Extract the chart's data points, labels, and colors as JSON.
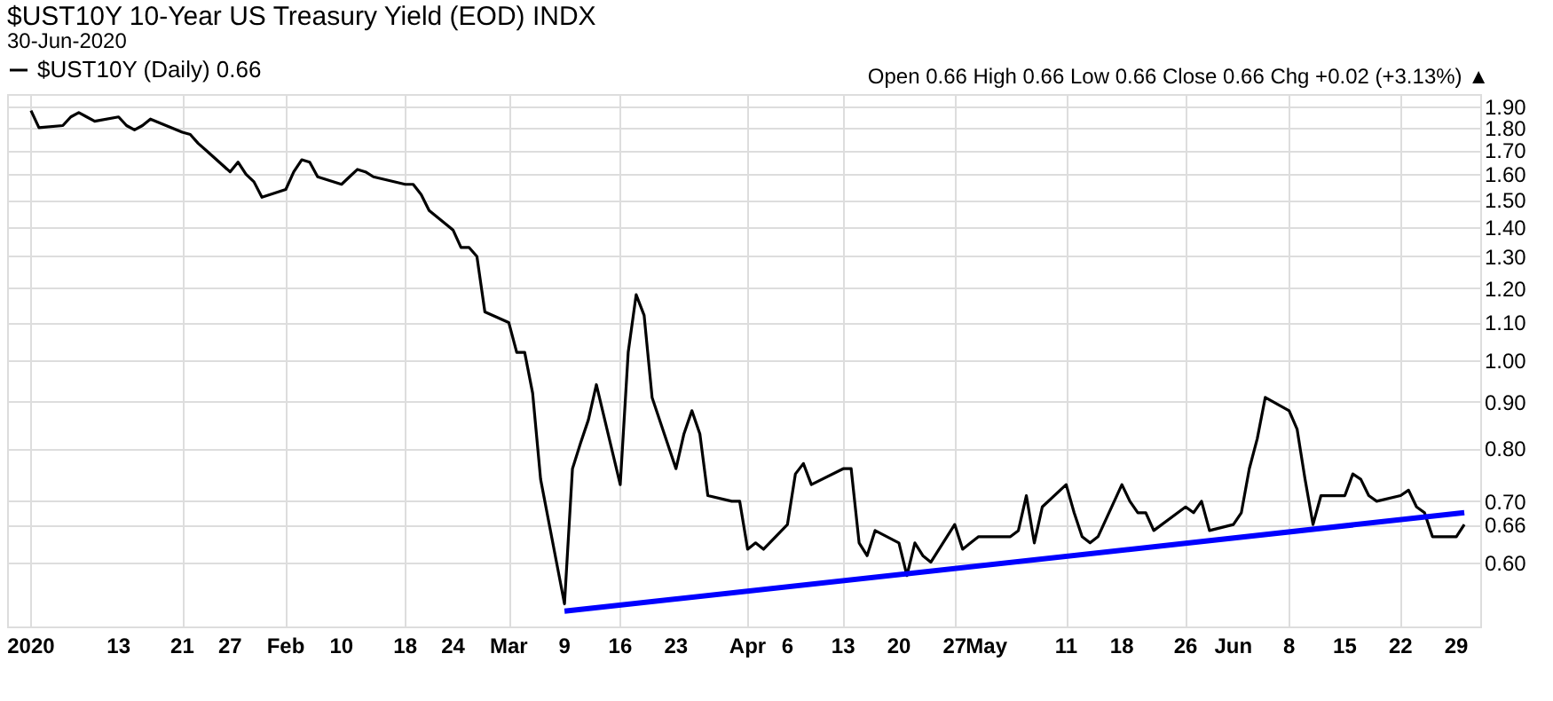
{
  "chart_data": {
    "type": "line",
    "title": "$UST10Y 10-Year US Treasury Yield (EOD) INDX",
    "subtitle": "30-Jun-2020",
    "annotations": [
      "Open 0.66  High 0.66  Low 0.66  Close 0.66  Chg +0.02 (+3.13%) ▲"
    ],
    "x": [
      "2020-01-02",
      "2020-01-03",
      "2020-01-06",
      "2020-01-07",
      "2020-01-08",
      "2020-01-09",
      "2020-01-10",
      "2020-01-13",
      "2020-01-14",
      "2020-01-15",
      "2020-01-16",
      "2020-01-17",
      "2020-01-21",
      "2020-01-22",
      "2020-01-23",
      "2020-01-24",
      "2020-01-27",
      "2020-01-28",
      "2020-01-29",
      "2020-01-30",
      "2020-01-31",
      "2020-02-03",
      "2020-02-04",
      "2020-02-05",
      "2020-02-06",
      "2020-02-07",
      "2020-02-10",
      "2020-02-11",
      "2020-02-12",
      "2020-02-13",
      "2020-02-14",
      "2020-02-18",
      "2020-02-19",
      "2020-02-20",
      "2020-02-21",
      "2020-02-24",
      "2020-02-25",
      "2020-02-26",
      "2020-02-27",
      "2020-02-28",
      "2020-03-02",
      "2020-03-03",
      "2020-03-04",
      "2020-03-05",
      "2020-03-06",
      "2020-03-09",
      "2020-03-10",
      "2020-03-11",
      "2020-03-12",
      "2020-03-13",
      "2020-03-16",
      "2020-03-17",
      "2020-03-18",
      "2020-03-19",
      "2020-03-20",
      "2020-03-23",
      "2020-03-24",
      "2020-03-25",
      "2020-03-26",
      "2020-03-27",
      "2020-03-30",
      "2020-03-31",
      "2020-04-01",
      "2020-04-02",
      "2020-04-03",
      "2020-04-06",
      "2020-04-07",
      "2020-04-08",
      "2020-04-09",
      "2020-04-13",
      "2020-04-14",
      "2020-04-15",
      "2020-04-16",
      "2020-04-17",
      "2020-04-20",
      "2020-04-21",
      "2020-04-22",
      "2020-04-23",
      "2020-04-24",
      "2020-04-27",
      "2020-04-28",
      "2020-04-29",
      "2020-04-30",
      "2020-05-01",
      "2020-05-04",
      "2020-05-05",
      "2020-05-06",
      "2020-05-07",
      "2020-05-08",
      "2020-05-11",
      "2020-05-12",
      "2020-05-13",
      "2020-05-14",
      "2020-05-15",
      "2020-05-18",
      "2020-05-19",
      "2020-05-20",
      "2020-05-21",
      "2020-05-22",
      "2020-05-26",
      "2020-05-27",
      "2020-05-28",
      "2020-05-29",
      "2020-06-01",
      "2020-06-02",
      "2020-06-03",
      "2020-06-04",
      "2020-06-05",
      "2020-06-08",
      "2020-06-09",
      "2020-06-10",
      "2020-06-11",
      "2020-06-12",
      "2020-06-15",
      "2020-06-16",
      "2020-06-17",
      "2020-06-18",
      "2020-06-19",
      "2020-06-22",
      "2020-06-23",
      "2020-06-24",
      "2020-06-25",
      "2020-06-26",
      "2020-06-29",
      "2020-06-30"
    ],
    "series": [
      {
        "name": "$UST10Y (Daily) 0.66",
        "color": "#000000",
        "values": [
          1.88,
          1.8,
          1.81,
          1.85,
          1.87,
          1.85,
          1.83,
          1.85,
          1.81,
          1.79,
          1.81,
          1.84,
          1.78,
          1.77,
          1.73,
          1.7,
          1.61,
          1.65,
          1.6,
          1.57,
          1.51,
          1.54,
          1.61,
          1.66,
          1.65,
          1.59,
          1.56,
          1.59,
          1.62,
          1.61,
          1.59,
          1.56,
          1.56,
          1.52,
          1.46,
          1.39,
          1.33,
          1.33,
          1.3,
          1.13,
          1.1,
          1.02,
          1.02,
          0.92,
          0.74,
          0.54,
          0.76,
          0.81,
          0.86,
          0.94,
          0.73,
          1.02,
          1.18,
          1.12,
          0.91,
          0.76,
          0.83,
          0.88,
          0.83,
          0.71,
          0.7,
          0.7,
          0.62,
          0.63,
          0.62,
          0.66,
          0.75,
          0.77,
          0.73,
          0.76,
          0.76,
          0.63,
          0.61,
          0.65,
          0.63,
          0.58,
          0.63,
          0.61,
          0.6,
          0.66,
          0.62,
          0.63,
          0.64,
          0.64,
          0.64,
          0.65,
          0.71,
          0.63,
          0.69,
          0.73,
          0.68,
          0.64,
          0.63,
          0.64,
          0.73,
          0.7,
          0.68,
          0.68,
          0.65,
          0.69,
          0.68,
          0.7,
          0.65,
          0.66,
          0.68,
          0.76,
          0.82,
          0.91,
          0.88,
          0.84,
          0.74,
          0.66,
          0.71,
          0.71,
          0.75,
          0.74,
          0.71,
          0.7,
          0.71,
          0.72,
          0.69,
          0.68,
          0.64,
          0.64,
          0.66
        ]
      },
      {
        "type": "line",
        "color": "#0000ff",
        "x": [
          "2020-03-09",
          "2020-06-30"
        ],
        "values": [
          0.53,
          0.68
        ]
      }
    ],
    "log": "y",
    "ylim": [
      0.51,
      1.96
    ],
    "yticks": [
      {
        "value": 0.6,
        "label": "0.60"
      },
      {
        "value": 0.66,
        "label": "0.66"
      },
      {
        "value": 0.7,
        "label": "0.70"
      },
      {
        "value": 0.8,
        "label": "0.80"
      },
      {
        "value": 0.9,
        "label": "0.90"
      },
      {
        "value": 1.0,
        "label": "1.00"
      },
      {
        "value": 1.1,
        "label": "1.10"
      },
      {
        "value": 1.2,
        "label": "1.20"
      },
      {
        "value": 1.3,
        "label": "1.30"
      },
      {
        "value": 1.4,
        "label": "1.40"
      },
      {
        "value": 1.5,
        "label": "1.50"
      },
      {
        "value": 1.6,
        "label": "1.60"
      },
      {
        "value": 1.7,
        "label": "1.70"
      },
      {
        "value": 1.8,
        "label": "1.80"
      },
      {
        "value": 1.9,
        "label": "1.90"
      }
    ],
    "xlim": [
      "2019-12-30",
      "2020-07-02"
    ],
    "xticks": [
      {
        "value": "2020-01-02",
        "label": "2020"
      },
      {
        "value": "2020-01-13",
        "label": "13"
      },
      {
        "value": "2020-01-21",
        "label": "21"
      },
      {
        "value": "2020-01-27",
        "label": "27"
      },
      {
        "value": "2020-02-03",
        "label": "Feb"
      },
      {
        "value": "2020-02-10",
        "label": "10"
      },
      {
        "value": "2020-02-18",
        "label": "18"
      },
      {
        "value": "2020-02-24",
        "label": "24"
      },
      {
        "value": "2020-03-02",
        "label": "Mar"
      },
      {
        "value": "2020-03-09",
        "label": "9"
      },
      {
        "value": "2020-03-16",
        "label": "16"
      },
      {
        "value": "2020-03-23",
        "label": "23"
      },
      {
        "value": "2020-04-01",
        "label": "Apr"
      },
      {
        "value": "2020-04-06",
        "label": "6"
      },
      {
        "value": "2020-04-13",
        "label": "13"
      },
      {
        "value": "2020-04-20",
        "label": "20"
      },
      {
        "value": "2020-04-27",
        "label": "27"
      },
      {
        "value": "2020-05-01",
        "label": "May"
      },
      {
        "value": "2020-05-11",
        "label": "11"
      },
      {
        "value": "2020-05-18",
        "label": "18"
      },
      {
        "value": "2020-05-26",
        "label": "26"
      },
      {
        "value": "2020-06-01",
        "label": "Jun"
      },
      {
        "value": "2020-06-08",
        "label": "8"
      },
      {
        "value": "2020-06-15",
        "label": "15"
      },
      {
        "value": "2020-06-22",
        "label": "22"
      },
      {
        "value": "2020-06-29",
        "label": "29"
      }
    ],
    "grid": true,
    "legend": "top left",
    "marker": "none",
    "line_style": "solid"
  }
}
